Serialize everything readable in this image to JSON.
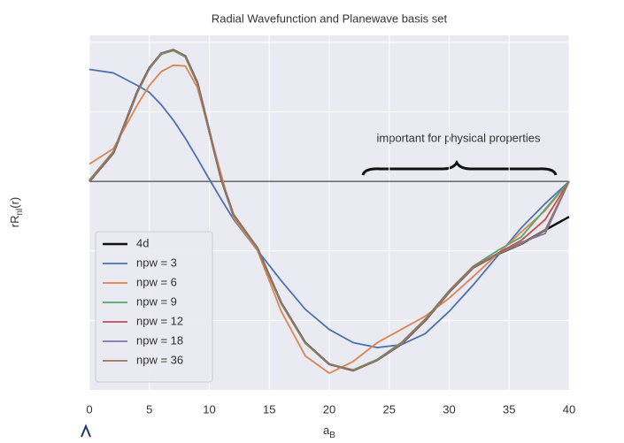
{
  "chart_data": {
    "type": "line",
    "title": "Radial Wavefunction and Planewave basis set",
    "xlabel": {
      "base": "a",
      "sub": "B"
    },
    "ylabel": {
      "base": "rR",
      "sub": "nl",
      "tail": "(r)"
    },
    "annotation": "important for physical properties",
    "annotation_color": "#ff2a00",
    "hline": 0,
    "x": [
      0,
      2,
      4,
      5,
      6,
      7,
      8,
      9,
      10,
      11,
      12,
      14,
      16,
      18,
      20,
      22,
      24,
      26,
      28,
      30,
      32,
      34,
      36,
      38,
      40
    ],
    "xlim": [
      0,
      40
    ],
    "xticks": [
      0,
      5,
      10,
      15,
      20,
      25,
      30,
      35,
      40
    ],
    "ylim": [
      -0.3,
      0.21
    ],
    "yticks": [
      -0.2,
      -0.1,
      0,
      0.1,
      0.2
    ],
    "grid": true,
    "legend": "lower left",
    "series": [
      {
        "name": "4d",
        "color": "#111111",
        "values": [
          0,
          0.041,
          0.129,
          0.163,
          0.184,
          0.189,
          0.18,
          0.142,
          0.072,
          0.003,
          -0.048,
          -0.096,
          -0.175,
          -0.232,
          -0.263,
          -0.272,
          -0.257,
          -0.234,
          -0.2,
          -0.159,
          -0.124,
          -0.105,
          -0.09,
          -0.07,
          -0.051
        ]
      },
      {
        "name": "npw = 3",
        "color": "#4c72b0",
        "values": [
          0.161,
          0.156,
          0.138,
          0.128,
          0.11,
          0.088,
          0.062,
          0.033,
          0.003,
          -0.026,
          -0.054,
          -0.099,
          -0.143,
          -0.184,
          -0.213,
          -0.232,
          -0.239,
          -0.235,
          -0.219,
          -0.187,
          -0.149,
          -0.108,
          -0.067,
          -0.032,
          0
        ]
      },
      {
        "name": "npw = 6",
        "color": "#dd8452",
        "values": [
          0.025,
          0.047,
          0.11,
          0.138,
          0.158,
          0.167,
          0.166,
          0.135,
          0.072,
          0.009,
          -0.052,
          -0.099,
          -0.187,
          -0.251,
          -0.276,
          -0.259,
          -0.232,
          -0.213,
          -0.194,
          -0.168,
          -0.137,
          -0.105,
          -0.073,
          -0.042,
          0
        ]
      },
      {
        "name": "npw = 9",
        "color": "#55a868",
        "values": [
          0.002,
          0.043,
          0.128,
          0.162,
          0.183,
          0.188,
          0.179,
          0.141,
          0.071,
          0.003,
          -0.048,
          -0.097,
          -0.176,
          -0.233,
          -0.263,
          -0.271,
          -0.256,
          -0.232,
          -0.198,
          -0.157,
          -0.122,
          -0.1,
          -0.08,
          -0.04,
          0
        ]
      },
      {
        "name": "npw = 12",
        "color": "#c44e52",
        "values": [
          0.001,
          0.042,
          0.129,
          0.163,
          0.184,
          0.189,
          0.18,
          0.142,
          0.072,
          0.003,
          -0.048,
          -0.096,
          -0.175,
          -0.232,
          -0.263,
          -0.272,
          -0.257,
          -0.233,
          -0.199,
          -0.158,
          -0.123,
          -0.104,
          -0.085,
          -0.055,
          0
        ]
      },
      {
        "name": "npw = 18",
        "color": "#8172b3",
        "values": [
          0,
          0.041,
          0.129,
          0.163,
          0.184,
          0.189,
          0.18,
          0.142,
          0.072,
          0.003,
          -0.048,
          -0.096,
          -0.175,
          -0.232,
          -0.263,
          -0.272,
          -0.257,
          -0.234,
          -0.2,
          -0.159,
          -0.124,
          -0.105,
          -0.088,
          -0.075,
          0
        ]
      },
      {
        "name": "npw = 36",
        "color": "#937860",
        "values": [
          0,
          0.041,
          0.129,
          0.163,
          0.184,
          0.189,
          0.18,
          0.142,
          0.072,
          0.003,
          -0.048,
          -0.096,
          -0.175,
          -0.232,
          -0.263,
          -0.272,
          -0.257,
          -0.234,
          -0.2,
          -0.159,
          -0.124,
          -0.105,
          -0.09,
          -0.07,
          0
        ]
      }
    ]
  }
}
